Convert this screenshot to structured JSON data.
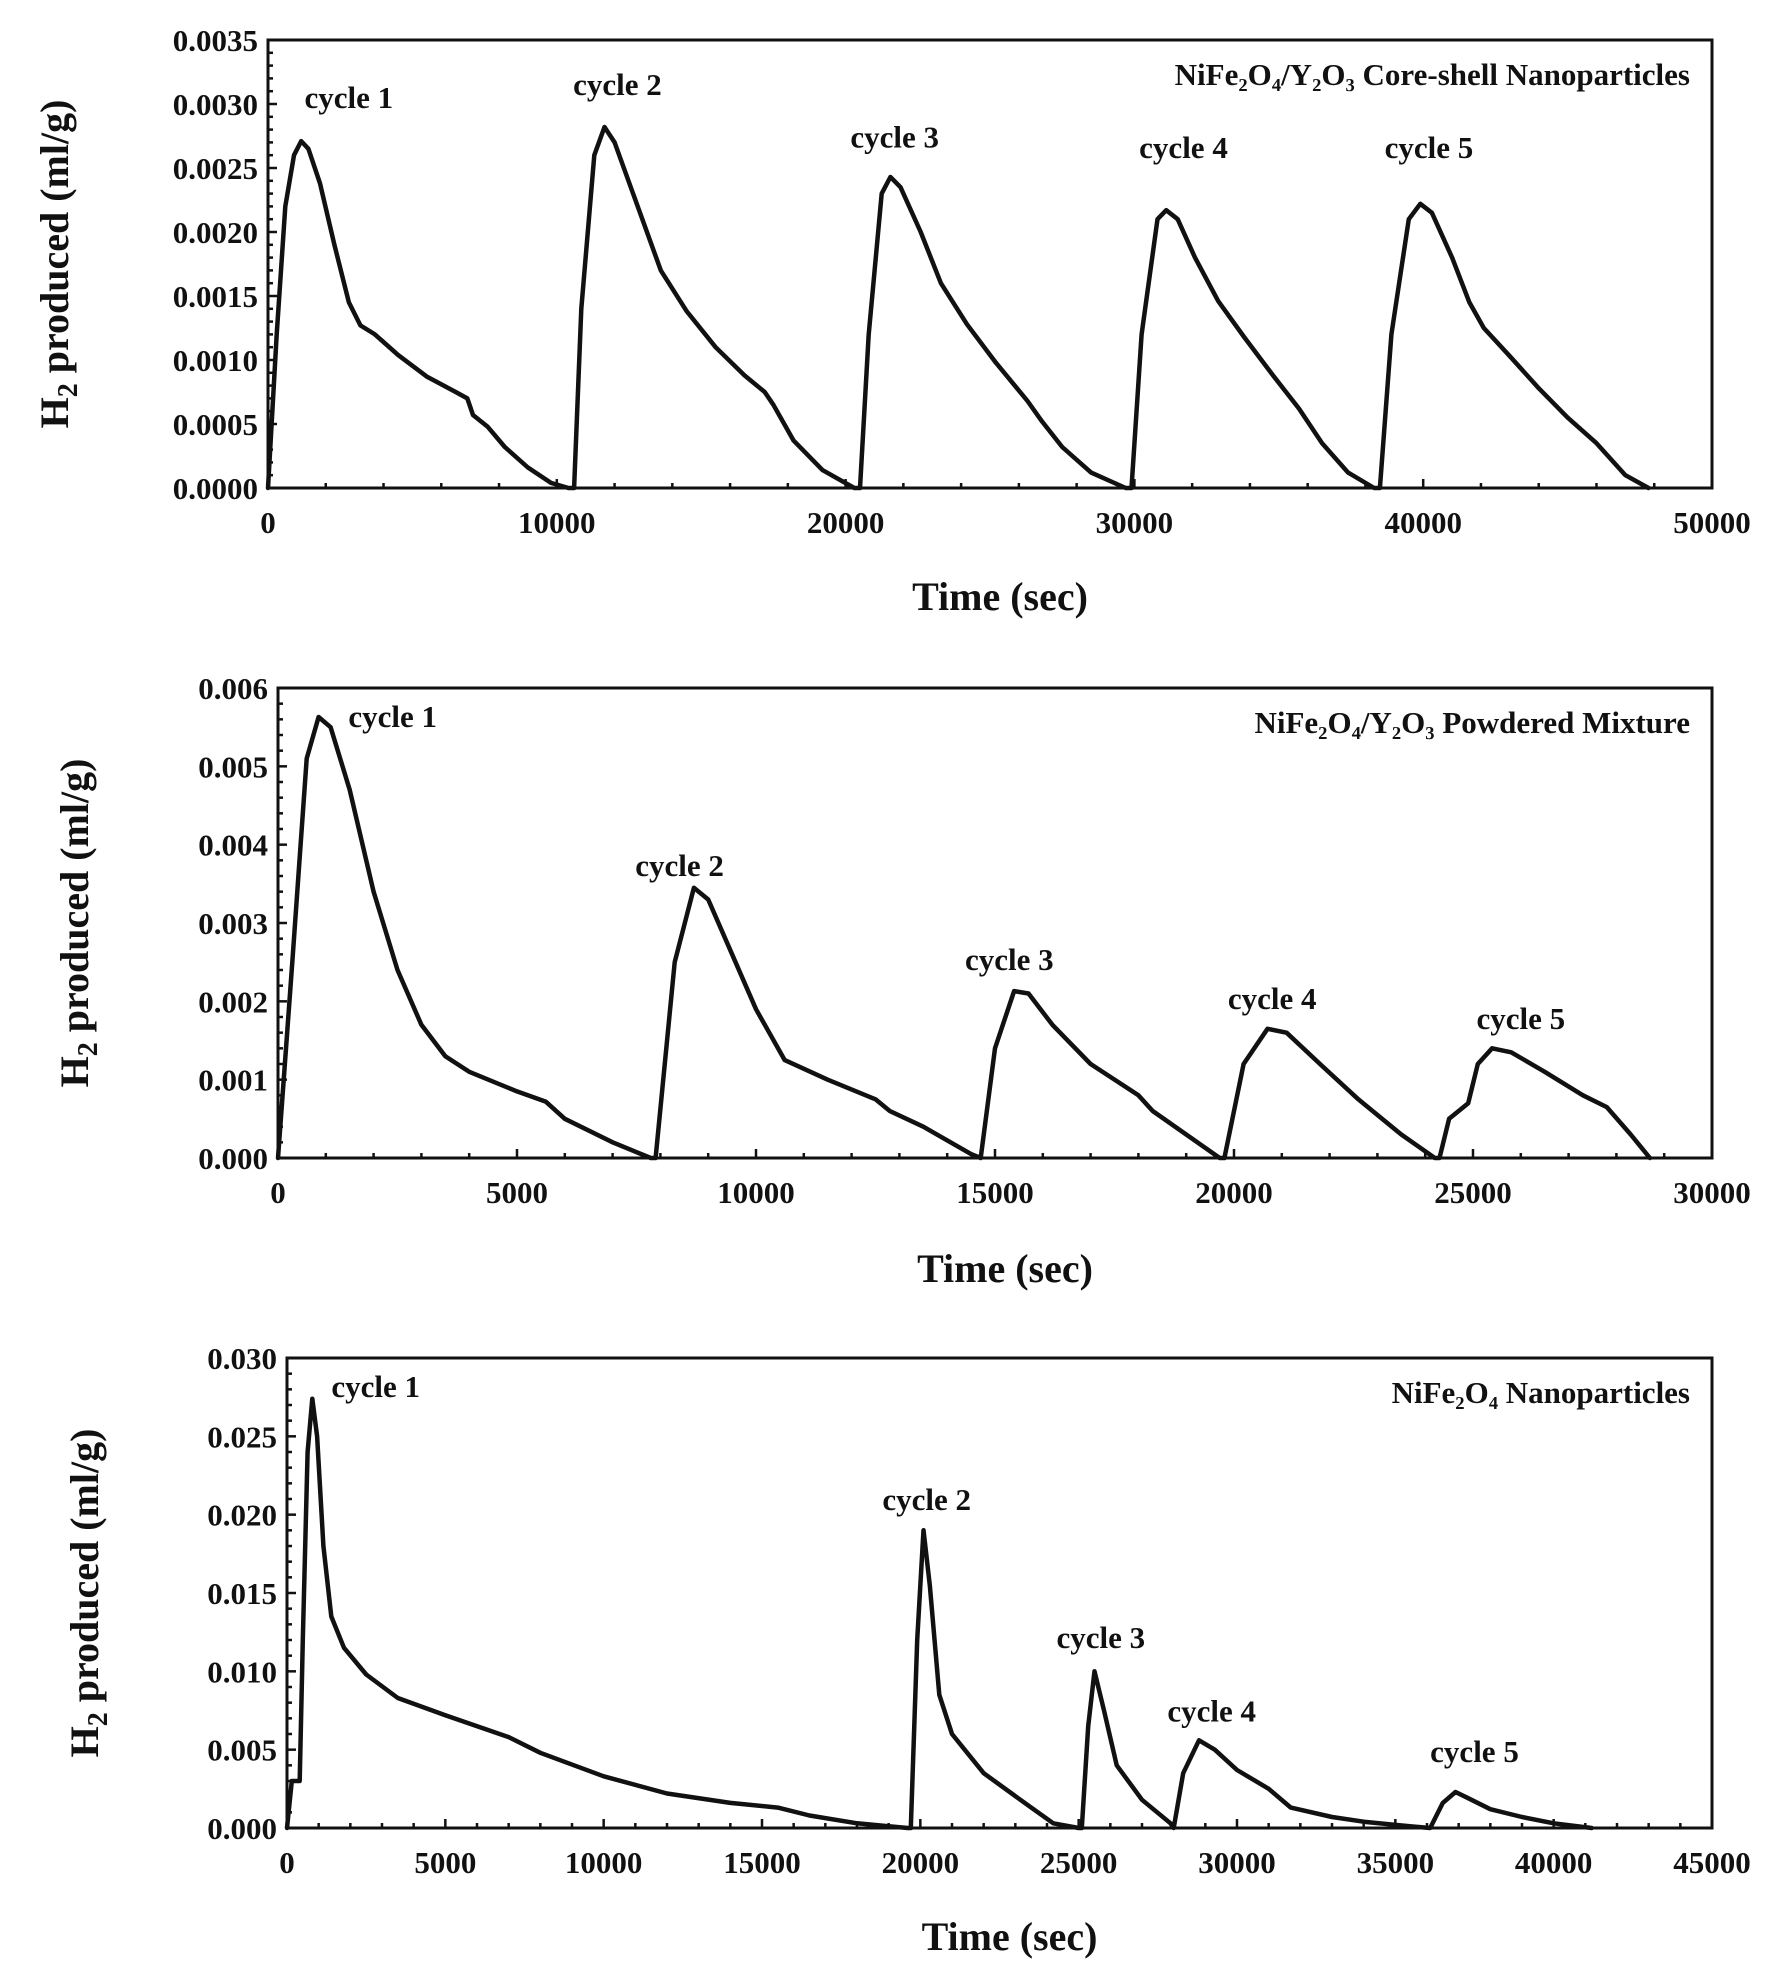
{
  "chart_data": [
    {
      "type": "line",
      "title": "NiFe₂O₄/Y₂O₃ Core-shell Nanoparticles",
      "xlabel": "Time (sec)",
      "ylabel_main": "H",
      "ylabel_sub": "2",
      "ylabel_rest": " produced (ml/g)",
      "xlim": [
        0,
        50000
      ],
      "ylim": [
        0,
        0.0035
      ],
      "xticks": [
        0,
        10000,
        20000,
        30000,
        40000,
        50000
      ],
      "xtick_labels": [
        "0",
        "10000",
        "20000",
        "30000",
        "40000",
        "50000"
      ],
      "yticks": [
        0,
        0.0005,
        0.001,
        0.0015,
        0.002,
        0.0025,
        0.003,
        0.0035
      ],
      "ytick_labels": [
        "0.0000",
        "0.0005",
        "0.0010",
        "0.0015",
        "0.0020",
        "0.0025",
        "0.0030",
        "0.0035"
      ],
      "grid": false,
      "annotations": [
        {
          "text": "cycle 1",
          "x": 2800,
          "y": 0.00297
        },
        {
          "text": "cycle 2",
          "x": 12100,
          "y": 0.00307
        },
        {
          "text": "cycle 3",
          "x": 21700,
          "y": 0.00266
        },
        {
          "text": "cycle 4",
          "x": 31700,
          "y": 0.00258
        },
        {
          "text": "cycle 5",
          "x": 40200,
          "y": 0.00258
        }
      ],
      "series": [
        {
          "x": [
            0,
            300,
            600,
            900,
            1150,
            1400,
            1800,
            2300,
            2800,
            3200,
            3700,
            4500,
            5500,
            6500,
            6900,
            7100,
            7600,
            8200,
            9000,
            9800,
            10400,
            10600,
            10850,
            11300,
            11650,
            12000,
            12800,
            13600,
            14500,
            15500,
            16500,
            17200,
            17500,
            18200,
            19200,
            20300,
            20500,
            20800,
            21250,
            21550,
            21900,
            22600,
            23300,
            24200,
            25200,
            26300,
            26800,
            27500,
            28500,
            29700,
            29900,
            30250,
            30800,
            31100,
            31500,
            32100,
            32900,
            33800,
            34800,
            35700,
            36500,
            37400,
            38300,
            38500,
            38900,
            39500,
            39900,
            40300,
            41000,
            41600,
            42100,
            43000,
            44000,
            45000,
            46000,
            47000,
            47800
          ],
          "y": [
            0,
            0.0012,
            0.0022,
            0.0026,
            0.00271,
            0.00265,
            0.00238,
            0.0019,
            0.00145,
            0.00127,
            0.0012,
            0.00104,
            0.00087,
            0.00075,
            0.0007,
            0.00057,
            0.00048,
            0.00032,
            0.00016,
            4e-05,
            0,
            0,
            0.0014,
            0.0026,
            0.00282,
            0.0027,
            0.0022,
            0.0017,
            0.00138,
            0.0011,
            0.00088,
            0.00075,
            0.00065,
            0.00037,
            0.00014,
            0,
            0,
            0.0012,
            0.0023,
            0.00243,
            0.00235,
            0.002,
            0.0016,
            0.00128,
            0.00098,
            0.00068,
            0.00052,
            0.00032,
            0.00012,
            0,
            0,
            0.0012,
            0.0021,
            0.00217,
            0.0021,
            0.0018,
            0.00146,
            0.00118,
            0.00088,
            0.00062,
            0.00035,
            0.00012,
            0,
            0,
            0.0012,
            0.0021,
            0.00222,
            0.00215,
            0.0018,
            0.00145,
            0.00125,
            0.00103,
            0.00078,
            0.00055,
            0.00035,
            0.0001,
            0
          ]
        }
      ]
    },
    {
      "type": "line",
      "title": "NiFe₂O₄/Y₂O₃ Powdered Mixture",
      "xlabel": "Time (sec)",
      "ylabel_main": "H",
      "ylabel_sub": "2",
      "ylabel_rest": " produced (ml/g)",
      "xlim": [
        0,
        30000
      ],
      "ylim": [
        0,
        0.006
      ],
      "xticks": [
        0,
        5000,
        10000,
        15000,
        20000,
        25000,
        30000
      ],
      "xtick_labels": [
        "0",
        "5000",
        "10000",
        "15000",
        "20000",
        "25000",
        "30000"
      ],
      "yticks": [
        0,
        0.001,
        0.002,
        0.003,
        0.004,
        0.005,
        0.006
      ],
      "ytick_labels": [
        "0.000",
        "0.001",
        "0.002",
        "0.003",
        "0.004",
        "0.005",
        "0.006"
      ],
      "grid": false,
      "annotations": [
        {
          "text": "cycle 1",
          "x": 2400,
          "y": 0.0055
        },
        {
          "text": "cycle 2",
          "x": 8400,
          "y": 0.0036
        },
        {
          "text": "cycle 3",
          "x": 15300,
          "y": 0.0024
        },
        {
          "text": "cycle 4",
          "x": 20800,
          "y": 0.0019
        },
        {
          "text": "cycle 5",
          "x": 26000,
          "y": 0.00165
        }
      ],
      "series": [
        {
          "x": [
            0,
            300,
            600,
            850,
            1100,
            1500,
            2000,
            2500,
            3000,
            3500,
            4000,
            5000,
            5600,
            6000,
            7000,
            7800,
            7900,
            8300,
            8700,
            9000,
            9500,
            10000,
            10600,
            11500,
            12500,
            12800,
            13500,
            14500,
            14700,
            15000,
            15400,
            15700,
            16200,
            17000,
            18000,
            18300,
            19000,
            19700,
            19800,
            20200,
            20700,
            21100,
            21800,
            22600,
            22900,
            23500,
            24200,
            24300,
            24500,
            24900,
            25100,
            25400,
            25800,
            26500,
            27300,
            27800,
            28300,
            28700
          ],
          "y": [
            0,
            0.0025,
            0.0051,
            0.00563,
            0.0055,
            0.0047,
            0.0034,
            0.0024,
            0.0017,
            0.0013,
            0.0011,
            0.00085,
            0.00072,
            0.0005,
            0.0002,
            0,
            0,
            0.0025,
            0.00345,
            0.0033,
            0.0026,
            0.0019,
            0.00125,
            0.001,
            0.00075,
            0.0006,
            0.0004,
            5e-05,
            0,
            0.0014,
            0.00213,
            0.0021,
            0.0017,
            0.0012,
            0.0008,
            0.0006,
            0.0003,
            0,
            0,
            0.0012,
            0.00165,
            0.0016,
            0.0012,
            0.00075,
            0.0006,
            0.0003,
            0,
            0,
            0.0005,
            0.0007,
            0.0012,
            0.0014,
            0.00135,
            0.0011,
            0.0008,
            0.00065,
            0.0003,
            0
          ]
        }
      ]
    },
    {
      "type": "line",
      "title": "NiFe₂O₄ Nanoparticles",
      "xlabel": "Time (sec)",
      "ylabel_main": "H",
      "ylabel_sub": "2",
      "ylabel_rest": " produced (ml/g)",
      "xlim": [
        0,
        45000
      ],
      "ylim": [
        0,
        0.03
      ],
      "xticks": [
        0,
        5000,
        10000,
        15000,
        20000,
        25000,
        30000,
        35000,
        40000,
        45000
      ],
      "xtick_labels": [
        "0",
        "5000",
        "10000",
        "15000",
        "20000",
        "25000",
        "30000",
        "35000",
        "40000",
        "45000"
      ],
      "yticks": [
        0,
        0.005,
        0.01,
        0.015,
        0.02,
        0.025,
        0.03
      ],
      "ytick_labels": [
        "0.000",
        "0.005",
        "0.010",
        "0.015",
        "0.020",
        "0.025",
        "0.030"
      ],
      "grid": false,
      "annotations": [
        {
          "text": "cycle 1",
          "x": 2800,
          "y": 0.0275
        },
        {
          "text": "cycle 2",
          "x": 20200,
          "y": 0.0203
        },
        {
          "text": "cycle 3",
          "x": 25700,
          "y": 0.0115
        },
        {
          "text": "cycle 4",
          "x": 29200,
          "y": 0.0068
        },
        {
          "text": "cycle 5",
          "x": 37500,
          "y": 0.0042
        }
      ],
      "series": [
        {
          "x": [
            0,
            150,
            400,
            500,
            650,
            800,
            950,
            1150,
            1400,
            1800,
            2500,
            3500,
            5000,
            7000,
            8000,
            10000,
            12000,
            14000,
            15500,
            16500,
            18000,
            19600,
            19700,
            19900,
            20100,
            20300,
            20600,
            21000,
            22000,
            23500,
            24200,
            25000,
            25100,
            25300,
            25500,
            25800,
            26200,
            27000,
            27900,
            28000,
            28300,
            28800,
            29300,
            30000,
            31000,
            31700,
            33000,
            34000,
            35500,
            36100,
            36500,
            36900,
            37300,
            38000,
            39000,
            40000,
            41200
          ],
          "y": [
            0,
            0.003,
            0.003,
            0.012,
            0.024,
            0.0274,
            0.025,
            0.018,
            0.0135,
            0.0115,
            0.0098,
            0.0083,
            0.0072,
            0.0058,
            0.0048,
            0.0033,
            0.0022,
            0.0016,
            0.0013,
            0.0008,
            0.0003,
            0,
            0,
            0.012,
            0.019,
            0.0155,
            0.0085,
            0.006,
            0.0035,
            0.0013,
            0.0003,
            0,
            0,
            0.0065,
            0.01,
            0.0075,
            0.004,
            0.0018,
            0.0003,
            0,
            0.0035,
            0.0056,
            0.005,
            0.0037,
            0.0025,
            0.0013,
            0.0007,
            0.0004,
            0.0001,
            0,
            0.0016,
            0.0023,
            0.0019,
            0.0012,
            0.0007,
            0.0003,
            0
          ]
        }
      ]
    }
  ]
}
